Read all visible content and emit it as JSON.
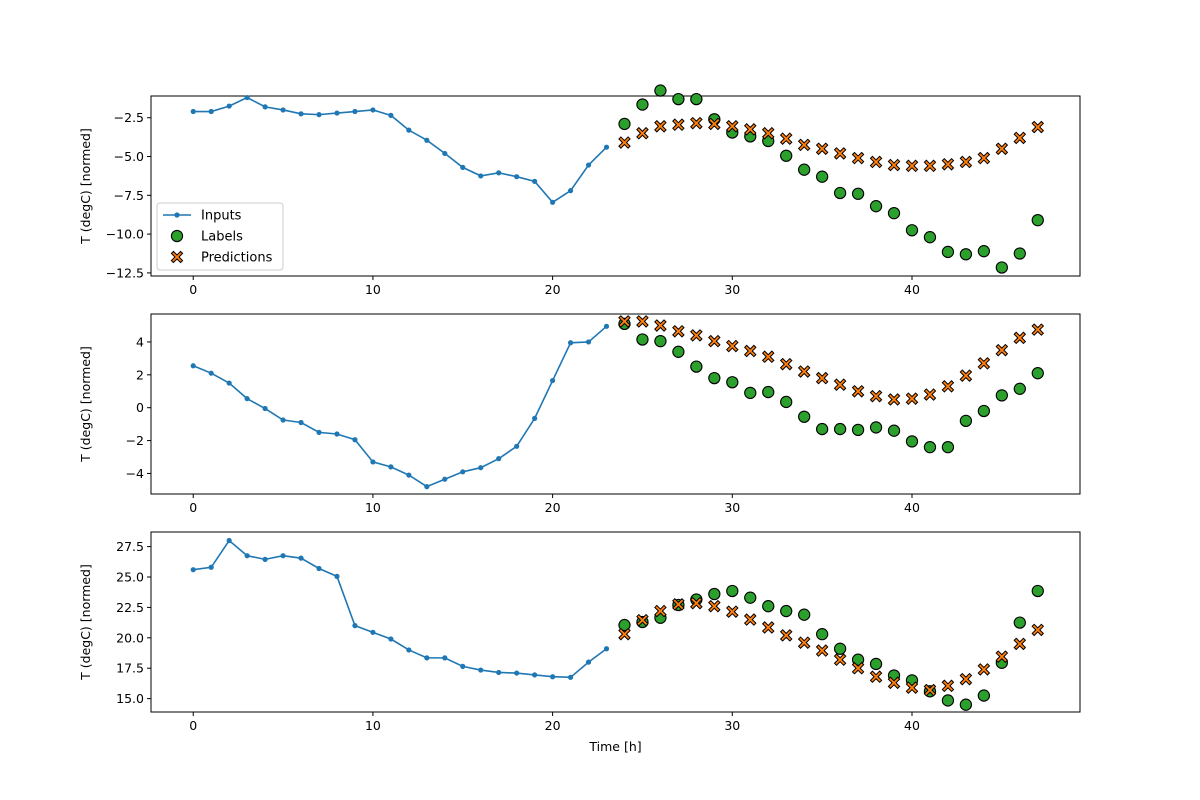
{
  "chart_data": [
    {
      "type": "line",
      "ylabel": "T (degC) [normed]",
      "xlabel": "",
      "xlim": [
        -2.35,
        49.35
      ],
      "ylim": [
        -12.7,
        -1.1
      ],
      "xticks": [
        0,
        10,
        20,
        30,
        40
      ],
      "yticks": [
        -12.5,
        -10.0,
        -7.5,
        -5.0,
        -2.5
      ],
      "ytick_labels": [
        "−12.5",
        "−10.0",
        "−7.5",
        "−5.0",
        "−2.5"
      ],
      "legend": {
        "position": "lower-left",
        "entries": [
          "Inputs",
          "Labels",
          "Predictions"
        ]
      },
      "series": [
        {
          "name": "Inputs",
          "x": [
            0,
            1,
            2,
            3,
            4,
            5,
            6,
            7,
            8,
            9,
            10,
            11,
            12,
            13,
            14,
            15,
            16,
            17,
            18,
            19,
            20,
            21,
            22,
            23
          ],
          "values": [
            -2.1,
            -2.1,
            -1.75,
            -1.2,
            -1.8,
            -2.0,
            -2.25,
            -2.3,
            -2.2,
            -2.1,
            -2.0,
            -2.35,
            -3.3,
            -3.95,
            -4.8,
            -5.7,
            -6.25,
            -6.05,
            -6.3,
            -6.6,
            -7.95,
            -7.2,
            -5.55,
            -4.4
          ],
          "color": "#1f77b4",
          "style": "line-dot"
        },
        {
          "name": "Labels",
          "x": [
            24,
            25,
            26,
            27,
            28,
            29,
            30,
            31,
            32,
            33,
            34,
            35,
            36,
            37,
            38,
            39,
            40,
            41,
            42,
            43,
            44,
            45,
            46,
            47
          ],
          "values": [
            -2.9,
            -1.65,
            -0.75,
            -1.3,
            -1.3,
            -2.6,
            -3.45,
            -3.7,
            -4.0,
            -4.95,
            -5.85,
            -6.3,
            -7.35,
            -7.4,
            -8.2,
            -8.65,
            -9.75,
            -10.2,
            -11.15,
            -11.3,
            -11.1,
            -12.15,
            -11.25,
            -9.1
          ],
          "color": "#2ca02c",
          "style": "circle"
        },
        {
          "name": "Predictions",
          "x": [
            24,
            25,
            26,
            27,
            28,
            29,
            30,
            31,
            32,
            33,
            34,
            35,
            36,
            37,
            38,
            39,
            40,
            41,
            42,
            43,
            44,
            45,
            46,
            47
          ],
          "values": [
            -4.1,
            -3.5,
            -3.05,
            -2.95,
            -2.85,
            -2.9,
            -3.05,
            -3.25,
            -3.5,
            -3.85,
            -4.25,
            -4.5,
            -4.8,
            -5.1,
            -5.35,
            -5.55,
            -5.6,
            -5.6,
            -5.5,
            -5.35,
            -5.1,
            -4.5,
            -3.8,
            -3.1
          ],
          "color": "#ff7f0e",
          "style": "x"
        }
      ]
    },
    {
      "type": "line",
      "ylabel": "T (degC) [normed]",
      "xlabel": "",
      "xlim": [
        -2.35,
        49.35
      ],
      "ylim": [
        -5.25,
        5.7
      ],
      "xticks": [
        0,
        10,
        20,
        30,
        40
      ],
      "yticks": [
        -4,
        -2,
        0,
        2,
        4
      ],
      "ytick_labels": [
        "−4",
        "−2",
        "0",
        "2",
        "4"
      ],
      "series": [
        {
          "name": "Inputs",
          "x": [
            0,
            1,
            2,
            3,
            4,
            5,
            6,
            7,
            8,
            9,
            10,
            11,
            12,
            13,
            14,
            15,
            16,
            17,
            18,
            19,
            20,
            21,
            22,
            23
          ],
          "values": [
            2.55,
            2.1,
            1.5,
            0.55,
            -0.05,
            -0.75,
            -0.9,
            -1.5,
            -1.6,
            -1.95,
            -3.3,
            -3.6,
            -4.1,
            -4.8,
            -4.35,
            -3.9,
            -3.65,
            -3.1,
            -2.35,
            -0.65,
            1.65,
            3.95,
            4.0,
            4.95
          ],
          "color": "#1f77b4",
          "style": "line-dot"
        },
        {
          "name": "Labels",
          "x": [
            24,
            25,
            26,
            27,
            28,
            29,
            30,
            31,
            32,
            33,
            34,
            35,
            36,
            37,
            38,
            39,
            40,
            41,
            42,
            43,
            44,
            45,
            46,
            47
          ],
          "values": [
            5.1,
            4.15,
            4.05,
            3.4,
            2.5,
            1.8,
            1.55,
            0.9,
            0.95,
            0.35,
            -0.55,
            -1.3,
            -1.3,
            -1.35,
            -1.2,
            -1.4,
            -2.05,
            -2.4,
            -2.4,
            -0.8,
            -0.2,
            0.75,
            1.15,
            2.1
          ],
          "color": "#2ca02c",
          "style": "circle"
        },
        {
          "name": "Predictions",
          "x": [
            24,
            25,
            26,
            27,
            28,
            29,
            30,
            31,
            32,
            33,
            34,
            35,
            36,
            37,
            38,
            39,
            40,
            41,
            42,
            43,
            44,
            45,
            46,
            47
          ],
          "values": [
            5.25,
            5.25,
            5.0,
            4.65,
            4.4,
            4.05,
            3.75,
            3.45,
            3.1,
            2.65,
            2.2,
            1.8,
            1.4,
            1.0,
            0.7,
            0.5,
            0.55,
            0.8,
            1.3,
            1.95,
            2.7,
            3.5,
            4.25,
            4.75
          ],
          "color": "#ff7f0e",
          "style": "x"
        }
      ]
    },
    {
      "type": "line",
      "ylabel": "T (degC) [normed]",
      "xlabel": "Time [h]",
      "xlim": [
        -2.35,
        49.35
      ],
      "ylim": [
        13.9,
        28.7
      ],
      "xticks": [
        0,
        10,
        20,
        30,
        40
      ],
      "yticks": [
        15.0,
        17.5,
        20.0,
        22.5,
        25.0,
        27.5
      ],
      "ytick_labels": [
        "15.0",
        "17.5",
        "20.0",
        "22.5",
        "25.0",
        "27.5"
      ],
      "series": [
        {
          "name": "Inputs",
          "x": [
            0,
            1,
            2,
            3,
            4,
            5,
            6,
            7,
            8,
            9,
            10,
            11,
            12,
            13,
            14,
            15,
            16,
            17,
            18,
            19,
            20,
            21,
            22,
            23
          ],
          "values": [
            25.6,
            25.8,
            28.0,
            26.75,
            26.45,
            26.75,
            26.55,
            25.7,
            25.05,
            21.0,
            20.45,
            19.9,
            19.0,
            18.35,
            18.35,
            17.65,
            17.35,
            17.15,
            17.1,
            16.95,
            16.8,
            16.75,
            18.0,
            19.1
          ],
          "color": "#1f77b4",
          "style": "line-dot"
        },
        {
          "name": "Labels",
          "x": [
            24,
            25,
            26,
            27,
            28,
            29,
            30,
            31,
            32,
            33,
            34,
            35,
            36,
            37,
            38,
            39,
            40,
            41,
            42,
            43,
            44,
            45,
            46,
            47
          ],
          "values": [
            21.05,
            21.3,
            21.65,
            22.7,
            23.15,
            23.6,
            23.85,
            23.3,
            22.6,
            22.2,
            21.9,
            20.3,
            19.1,
            18.2,
            17.85,
            16.9,
            16.5,
            15.6,
            14.85,
            14.5,
            15.25,
            17.95,
            21.25,
            23.85
          ],
          "color": "#2ca02c",
          "style": "circle"
        },
        {
          "name": "Predictions",
          "x": [
            24,
            25,
            26,
            27,
            28,
            29,
            30,
            31,
            32,
            33,
            34,
            35,
            36,
            37,
            38,
            39,
            40,
            41,
            42,
            43,
            44,
            45,
            46,
            47
          ],
          "values": [
            20.3,
            21.45,
            22.2,
            22.75,
            22.85,
            22.6,
            22.15,
            21.5,
            20.85,
            20.2,
            19.6,
            18.95,
            18.2,
            17.5,
            16.8,
            16.3,
            15.9,
            15.7,
            16.05,
            16.6,
            17.4,
            18.45,
            19.5,
            20.65
          ],
          "color": "#ff7f0e",
          "style": "x"
        }
      ]
    }
  ]
}
